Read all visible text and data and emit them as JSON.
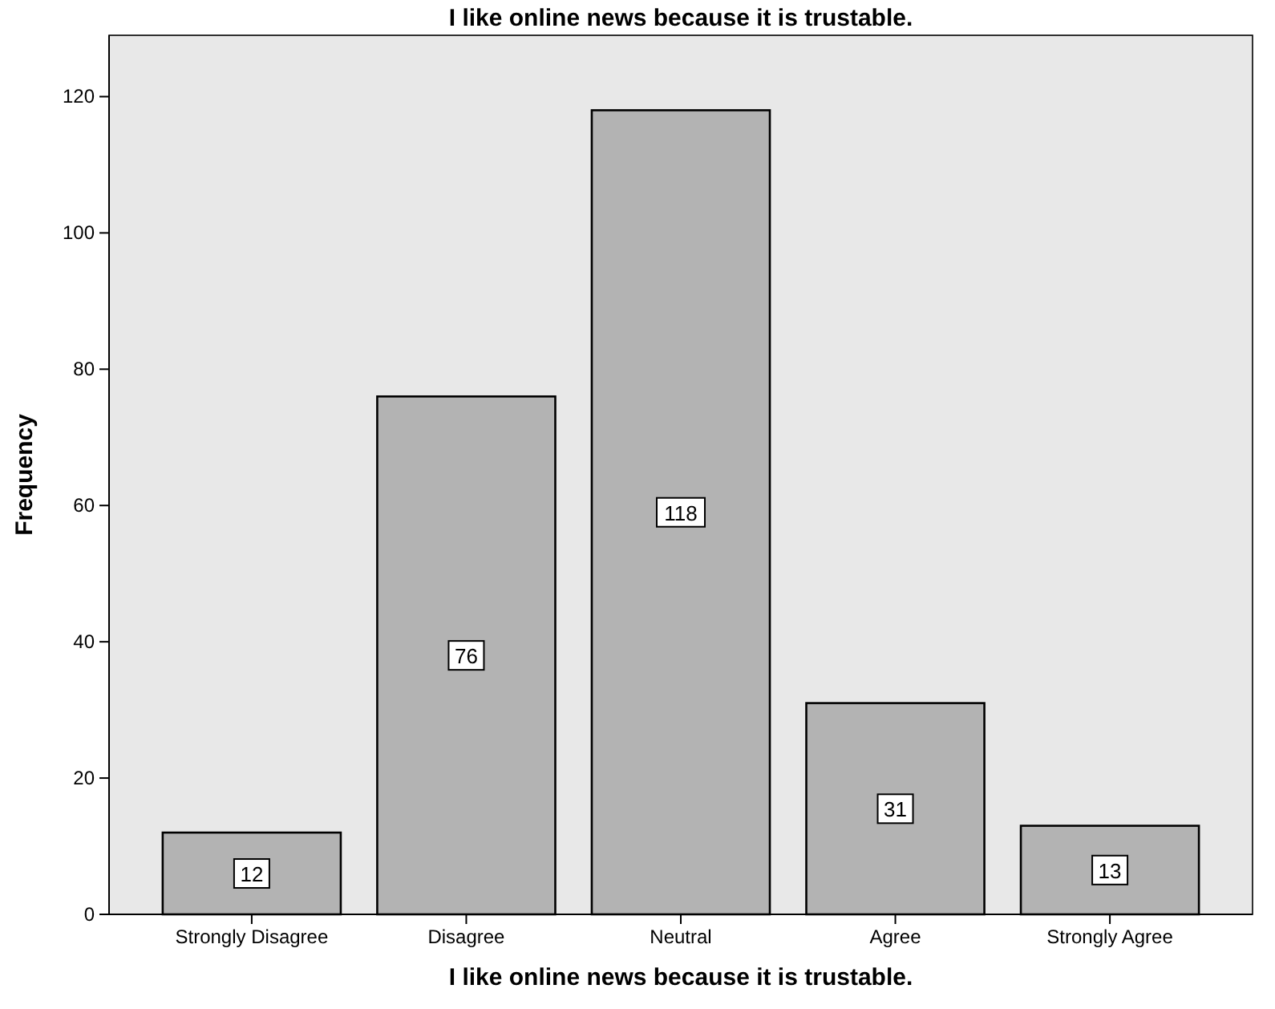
{
  "chart_data": {
    "type": "bar",
    "title": "I like online news because it is trustable.",
    "xlabel": "I like online news because it is trustable.",
    "ylabel": "Frequency",
    "categories": [
      "Strongly Disagree",
      "Disagree",
      "Neutral",
      "Agree",
      "Strongly Agree"
    ],
    "values": [
      12,
      76,
      118,
      31,
      13
    ],
    "color": "#b3b3b3",
    "ylim": [
      0,
      129
    ],
    "yticks": [
      0,
      20,
      40,
      60,
      80,
      100,
      120
    ],
    "data_labels": true,
    "grid": false
  }
}
